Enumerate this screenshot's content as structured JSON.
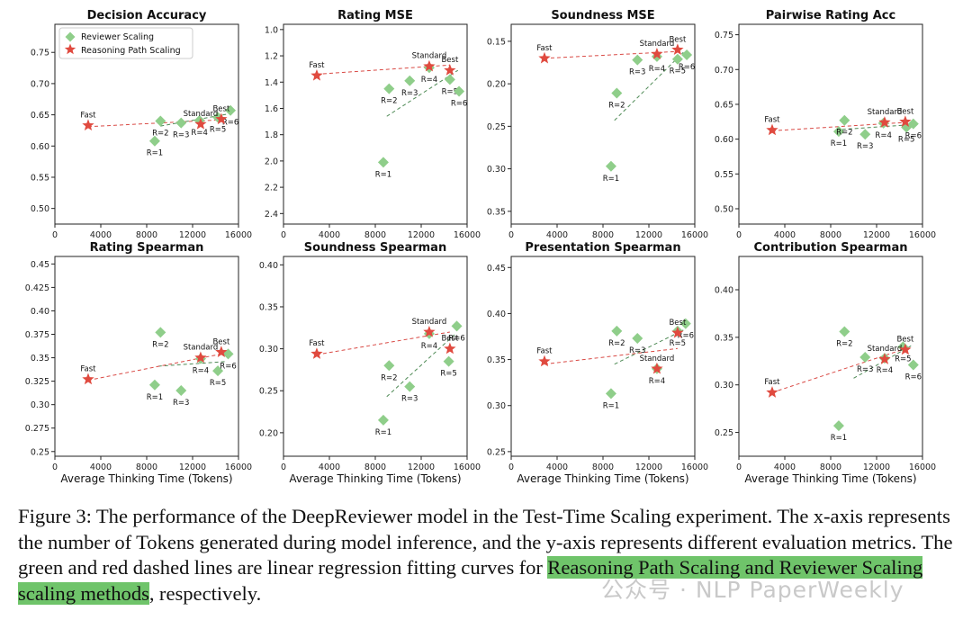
{
  "figure": {
    "legend": {
      "reviewer": "Reviewer Scaling",
      "reasoning": "Reasoning Path Scaling"
    },
    "x_axis_label": "Average Thinking Time (Tokens)",
    "caption_before": "Figure 3: The performance of the DeepReviewer model in the Test-Time Scaling experiment. The x-axis represents the number of Tokens generated during model inference, and the y-axis represents different evaluation metrics. The green and red dashed lines are linear regression fitting curves for ",
    "caption_highlight": "Reasoning Path Scaling and Reviewer Scaling scaling methods",
    "caption_after": ", respectively.",
    "watermark": "公众号 · NLP PaperWeekly",
    "colors": {
      "reviewer": "#8fce8a",
      "reasoning": "#e04a3f",
      "reviewer_line": "#4e8a55",
      "reasoning_line": "#d94a45",
      "highlight": "#6fc46a"
    }
  },
  "chart_data": [
    {
      "type": "scatter",
      "title": "Decision Accuracy",
      "xlim": [
        0,
        16000
      ],
      "xticks": [
        0,
        4000,
        8000,
        12000,
        16000
      ],
      "ylim": [
        0.475,
        0.795
      ],
      "yticks": [
        0.5,
        0.55,
        0.6,
        0.65,
        0.7,
        0.75
      ],
      "yinvert": false,
      "legend": "top-left",
      "reviewer": [
        {
          "x": 8700,
          "y": 0.608,
          "label": "R=1"
        },
        {
          "x": 9200,
          "y": 0.64,
          "label": "R=2"
        },
        {
          "x": 11000,
          "y": 0.637,
          "label": "R=3"
        },
        {
          "x": 12600,
          "y": 0.641,
          "label": "R=4"
        },
        {
          "x": 14200,
          "y": 0.646,
          "label": "R=5"
        },
        {
          "x": 15300,
          "y": 0.657,
          "label": "R=6"
        }
      ],
      "reasoning": [
        {
          "x": 2900,
          "y": 0.633,
          "label": "Fast"
        },
        {
          "x": 12700,
          "y": 0.635,
          "label": "Standard"
        },
        {
          "x": 14500,
          "y": 0.643,
          "label": "Best"
        }
      ],
      "reviewer_fit": [
        [
          9200,
          0.632
        ],
        [
          15300,
          0.652
        ]
      ],
      "reasoning_fit": [
        [
          2900,
          0.631
        ],
        [
          14500,
          0.642
        ]
      ]
    },
    {
      "type": "scatter",
      "title": "Rating MSE",
      "xlim": [
        0,
        16000
      ],
      "xticks": [
        0,
        4000,
        8000,
        12000,
        16000
      ],
      "ylim": [
        0.96,
        2.48
      ],
      "yticks": [
        1.0,
        1.2,
        1.4,
        1.6,
        1.8,
        2.0,
        2.2,
        2.4
      ],
      "yinvert": true,
      "reviewer": [
        {
          "x": 8700,
          "y": 2.01,
          "label": "R=1"
        },
        {
          "x": 9200,
          "y": 1.45,
          "label": "R=2"
        },
        {
          "x": 11000,
          "y": 1.39,
          "label": "R=3"
        },
        {
          "x": 12700,
          "y": 1.29,
          "label": "R=4"
        },
        {
          "x": 14500,
          "y": 1.38,
          "label": "R=5"
        },
        {
          "x": 15300,
          "y": 1.47,
          "label": "R=6"
        }
      ],
      "reasoning": [
        {
          "x": 2900,
          "y": 1.35,
          "label": "Fast"
        },
        {
          "x": 12700,
          "y": 1.28,
          "label": "Standard"
        },
        {
          "x": 14500,
          "y": 1.31,
          "label": "Best"
        }
      ],
      "reviewer_fit": [
        [
          9000,
          1.66
        ],
        [
          15200,
          1.31
        ]
      ],
      "reasoning_fit": [
        [
          2900,
          1.34
        ],
        [
          14500,
          1.27
        ]
      ]
    },
    {
      "type": "scatter",
      "title": "Soundness MSE",
      "xlim": [
        0,
        16000
      ],
      "xticks": [
        0,
        4000,
        8000,
        12000,
        16000
      ],
      "ylim": [
        0.13,
        0.365
      ],
      "yticks": [
        0.15,
        0.2,
        0.25,
        0.3,
        0.35
      ],
      "yinvert": true,
      "reviewer": [
        {
          "x": 8700,
          "y": 0.297,
          "label": "R=1"
        },
        {
          "x": 9200,
          "y": 0.211,
          "label": "R=2"
        },
        {
          "x": 11000,
          "y": 0.172,
          "label": "R=3"
        },
        {
          "x": 12700,
          "y": 0.168,
          "label": "R=4"
        },
        {
          "x": 14500,
          "y": 0.171,
          "label": "R=5"
        },
        {
          "x": 15300,
          "y": 0.166,
          "label": "R=6"
        }
      ],
      "reasoning": [
        {
          "x": 2900,
          "y": 0.17,
          "label": "Fast"
        },
        {
          "x": 12700,
          "y": 0.165,
          "label": "Standard"
        },
        {
          "x": 14500,
          "y": 0.16,
          "label": "Best"
        }
      ],
      "reviewer_fit": [
        [
          9000,
          0.243
        ],
        [
          15000,
          0.163
        ]
      ],
      "reasoning_fit": [
        [
          2900,
          0.17
        ],
        [
          14500,
          0.162
        ]
      ]
    },
    {
      "type": "scatter",
      "title": "Pairwise Rating Acc",
      "xlim": [
        0,
        16000
      ],
      "xticks": [
        0,
        4000,
        8000,
        12000,
        16000
      ],
      "ylim": [
        0.478,
        0.765
      ],
      "yticks": [
        0.5,
        0.55,
        0.6,
        0.65,
        0.7,
        0.75
      ],
      "yinvert": false,
      "reviewer": [
        {
          "x": 8700,
          "y": 0.611,
          "label": "R=1"
        },
        {
          "x": 9200,
          "y": 0.627,
          "label": "R=2"
        },
        {
          "x": 11000,
          "y": 0.607,
          "label": "R=3"
        },
        {
          "x": 12600,
          "y": 0.623,
          "label": "R=4"
        },
        {
          "x": 14600,
          "y": 0.617,
          "label": "R=5"
        },
        {
          "x": 15200,
          "y": 0.622,
          "label": "R=6"
        }
      ],
      "reasoning": [
        {
          "x": 2900,
          "y": 0.613,
          "label": "Fast"
        },
        {
          "x": 12700,
          "y": 0.624,
          "label": "Standard"
        },
        {
          "x": 14500,
          "y": 0.625,
          "label": "Best"
        }
      ],
      "reviewer_fit": [
        [
          9000,
          0.614
        ],
        [
          15200,
          0.621
        ]
      ],
      "reasoning_fit": [
        [
          2900,
          0.612
        ],
        [
          14500,
          0.624
        ]
      ]
    },
    {
      "type": "scatter",
      "title": "Rating Spearman",
      "xlim": [
        0,
        16000
      ],
      "xticks": [
        0,
        4000,
        8000,
        12000,
        16000
      ],
      "ylim": [
        0.245,
        0.458
      ],
      "yticks": [
        0.25,
        0.275,
        0.3,
        0.325,
        0.35,
        0.375,
        0.4,
        0.425,
        0.45
      ],
      "yinvert": false,
      "reviewer": [
        {
          "x": 8700,
          "y": 0.321,
          "label": "R=1"
        },
        {
          "x": 9200,
          "y": 0.377,
          "label": "R=2"
        },
        {
          "x": 11000,
          "y": 0.315,
          "label": "R=3"
        },
        {
          "x": 12700,
          "y": 0.349,
          "label": "R=4"
        },
        {
          "x": 14200,
          "y": 0.336,
          "label": "R=5"
        },
        {
          "x": 15100,
          "y": 0.354,
          "label": "R=6"
        }
      ],
      "reasoning": [
        {
          "x": 2900,
          "y": 0.327,
          "label": "Fast"
        },
        {
          "x": 12700,
          "y": 0.35,
          "label": "Standard"
        },
        {
          "x": 14500,
          "y": 0.356,
          "label": "Best"
        }
      ],
      "reviewer_fit": [
        [
          9000,
          0.341
        ],
        [
          15000,
          0.346
        ]
      ],
      "reasoning_fit": [
        [
          2900,
          0.326
        ],
        [
          14500,
          0.354
        ]
      ]
    },
    {
      "type": "scatter",
      "title": "Soundness Spearman",
      "xlim": [
        0,
        16000
      ],
      "xticks": [
        0,
        4000,
        8000,
        12000,
        16000
      ],
      "ylim": [
        0.172,
        0.41
      ],
      "yticks": [
        0.2,
        0.25,
        0.3,
        0.35,
        0.4
      ],
      "yinvert": false,
      "reviewer": [
        {
          "x": 8700,
          "y": 0.215,
          "label": "R=1"
        },
        {
          "x": 9200,
          "y": 0.28,
          "label": "R=2"
        },
        {
          "x": 11000,
          "y": 0.255,
          "label": "R=3"
        },
        {
          "x": 12700,
          "y": 0.318,
          "label": "R=4"
        },
        {
          "x": 14400,
          "y": 0.285,
          "label": "R=5"
        },
        {
          "x": 15100,
          "y": 0.327,
          "label": "R=6"
        }
      ],
      "reasoning": [
        {
          "x": 2900,
          "y": 0.294,
          "label": "Fast"
        },
        {
          "x": 12700,
          "y": 0.32,
          "label": "Standard"
        },
        {
          "x": 14500,
          "y": 0.3,
          "label": "Best"
        }
      ],
      "reviewer_fit": [
        [
          9000,
          0.243
        ],
        [
          15000,
          0.318
        ]
      ],
      "reasoning_fit": [
        [
          2900,
          0.293
        ],
        [
          14500,
          0.32
        ]
      ]
    },
    {
      "type": "scatter",
      "title": "Presentation Spearman",
      "xlim": [
        0,
        16000
      ],
      "xticks": [
        0,
        4000,
        8000,
        12000,
        16000
      ],
      "ylim": [
        0.245,
        0.462
      ],
      "yticks": [
        0.25,
        0.3,
        0.35,
        0.4,
        0.45
      ],
      "yinvert": false,
      "reviewer": [
        {
          "x": 8700,
          "y": 0.313,
          "label": "R=1"
        },
        {
          "x": 9200,
          "y": 0.381,
          "label": "R=2"
        },
        {
          "x": 11000,
          "y": 0.373,
          "label": "R=3"
        },
        {
          "x": 12700,
          "y": 0.34,
          "label": "R=4"
        },
        {
          "x": 14500,
          "y": 0.381,
          "label": "R=5"
        },
        {
          "x": 15200,
          "y": 0.389,
          "label": "R=6"
        }
      ],
      "reasoning": [
        {
          "x": 2900,
          "y": 0.348,
          "label": "Fast"
        },
        {
          "x": 12700,
          "y": 0.34,
          "label": "Standard"
        },
        {
          "x": 14500,
          "y": 0.379,
          "label": "Best"
        }
      ],
      "reviewer_fit": [
        [
          9000,
          0.345
        ],
        [
          15000,
          0.382
        ]
      ],
      "reasoning_fit": [
        [
          2900,
          0.345
        ],
        [
          14500,
          0.362
        ]
      ]
    },
    {
      "type": "scatter",
      "title": "Contribution Spearman",
      "xlim": [
        0,
        16000
      ],
      "xticks": [
        0,
        4000,
        8000,
        12000,
        16000
      ],
      "ylim": [
        0.225,
        0.435
      ],
      "yticks": [
        0.25,
        0.3,
        0.35,
        0.4
      ],
      "yinvert": false,
      "reviewer": [
        {
          "x": 8700,
          "y": 0.257,
          "label": "R=1"
        },
        {
          "x": 9200,
          "y": 0.356,
          "label": "R=2"
        },
        {
          "x": 11000,
          "y": 0.329,
          "label": "R=3"
        },
        {
          "x": 12700,
          "y": 0.328,
          "label": "R=4"
        },
        {
          "x": 14300,
          "y": 0.34,
          "label": "R=5"
        },
        {
          "x": 15200,
          "y": 0.321,
          "label": "R=6"
        }
      ],
      "reasoning": [
        {
          "x": 2900,
          "y": 0.292,
          "label": "Fast"
        },
        {
          "x": 12700,
          "y": 0.327,
          "label": "Standard"
        },
        {
          "x": 14500,
          "y": 0.337,
          "label": "Best"
        }
      ],
      "reviewer_fit": [
        [
          10000,
          0.307
        ],
        [
          15000,
          0.341
        ]
      ],
      "reasoning_fit": [
        [
          2900,
          0.292
        ],
        [
          14500,
          0.338
        ]
      ]
    }
  ]
}
